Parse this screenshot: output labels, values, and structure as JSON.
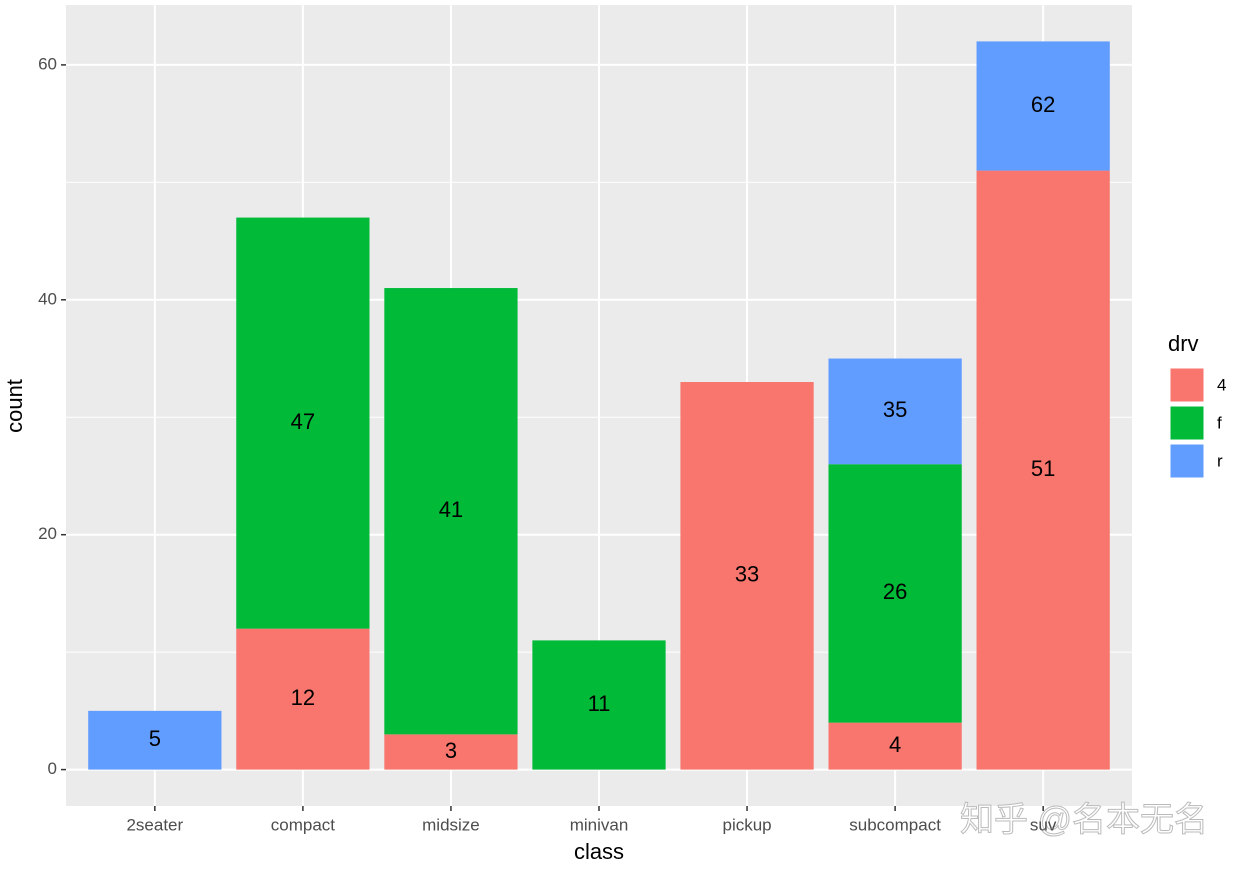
{
  "chart_data": {
    "type": "stacked_bar",
    "x_label": "class",
    "y_label": "count",
    "categories": [
      "2seater",
      "compact",
      "midsize",
      "minivan",
      "pickup",
      "subcompact",
      "suv"
    ],
    "legend_title": "drv",
    "series": [
      {
        "name": "4",
        "color": "#F8766D",
        "values": [
          null,
          12,
          3,
          null,
          33,
          4,
          51
        ],
        "annotations": [
          null,
          12,
          3,
          null,
          33,
          4,
          51
        ]
      },
      {
        "name": "f",
        "color": "#00BA38",
        "values": [
          null,
          35,
          38,
          11,
          null,
          22,
          null
        ],
        "annotations": [
          null,
          47,
          41,
          11,
          null,
          26,
          null
        ]
      },
      {
        "name": "r",
        "color": "#619CFF",
        "values": [
          5,
          null,
          null,
          null,
          null,
          9,
          11
        ],
        "annotations": [
          5,
          null,
          null,
          null,
          null,
          35,
          62
        ]
      }
    ],
    "ylim": [
      -3.1,
      65.1
    ],
    "yticks": [
      0,
      20,
      40,
      60
    ],
    "minor_yticks": [
      10,
      30,
      50
    ],
    "grid": true,
    "watermark": "知乎 @名本无名"
  }
}
